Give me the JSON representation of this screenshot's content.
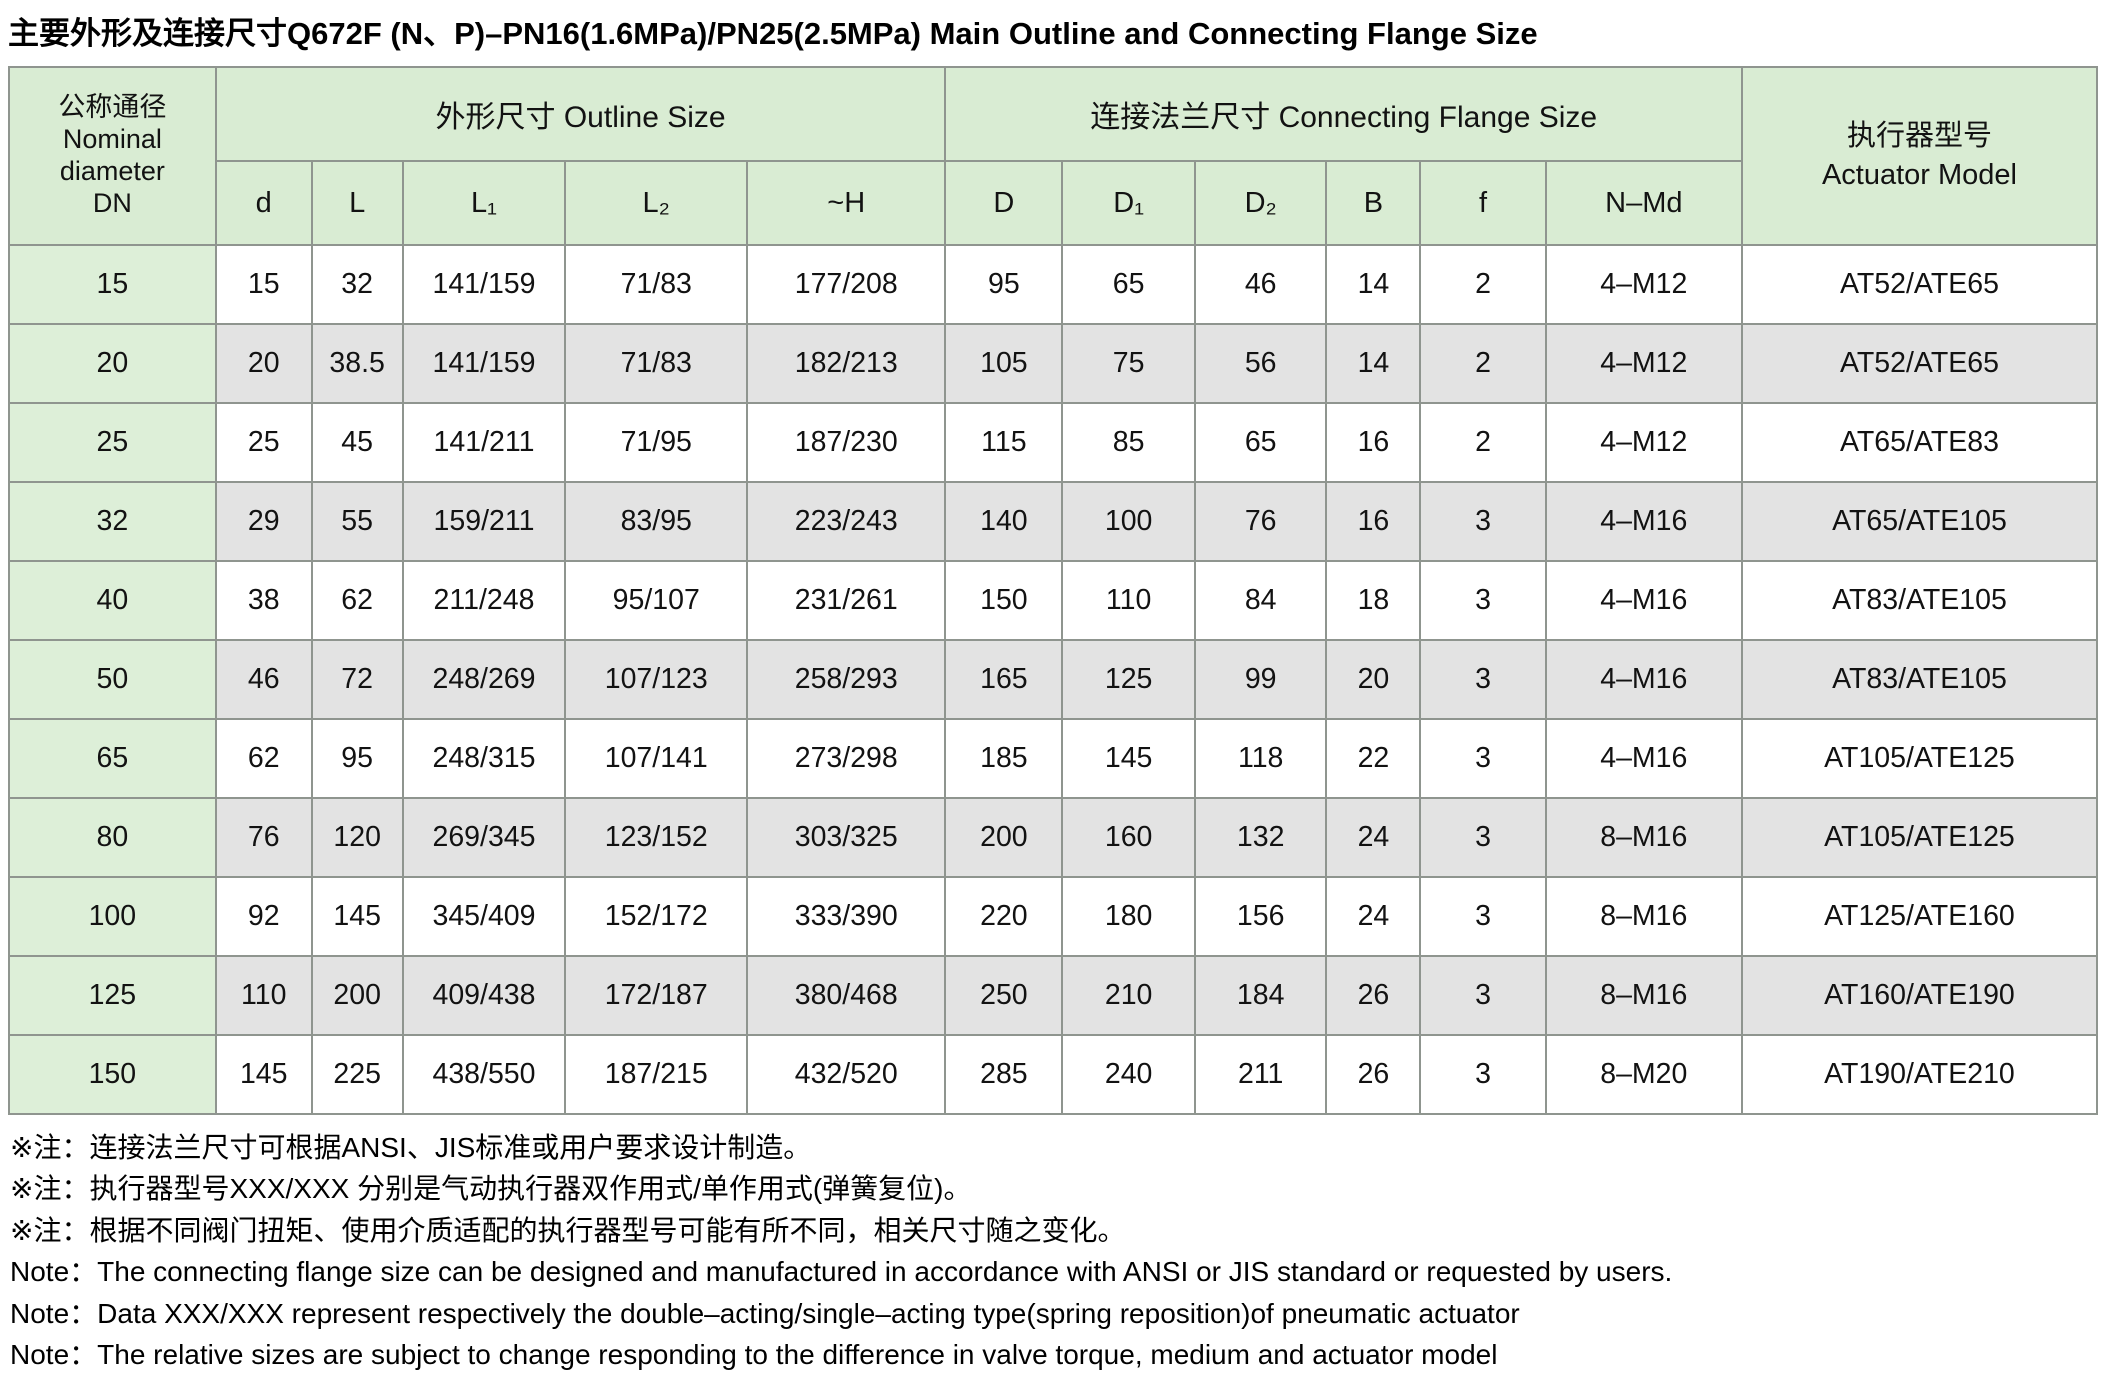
{
  "title": "主要外形及连接尺寸Q672F (N、P)–PN16(1.6MPa)/PN25(2.5MPa) Main Outline and Connecting Flange Size",
  "table": {
    "corner_header": "公称通径\nNominal\ndiameter\nDN",
    "groups": {
      "outline": "外形尺寸 Outline Size",
      "flange": "连接法兰尺寸 Connecting Flange Size",
      "actuator": "执行器型号\nActuator Model"
    },
    "columns": [
      "d",
      "L",
      "L₁",
      "L₂",
      "~H",
      "D",
      "D₁",
      "D₂",
      "B",
      "f",
      "N–Md"
    ],
    "rows": [
      [
        "15",
        "15",
        "32",
        "141/159",
        "71/83",
        "177/208",
        "95",
        "65",
        "46",
        "14",
        "2",
        "4–M12",
        "AT52/ATE65"
      ],
      [
        "20",
        "20",
        "38.5",
        "141/159",
        "71/83",
        "182/213",
        "105",
        "75",
        "56",
        "14",
        "2",
        "4–M12",
        "AT52/ATE65"
      ],
      [
        "25",
        "25",
        "45",
        "141/211",
        "71/95",
        "187/230",
        "115",
        "85",
        "65",
        "16",
        "2",
        "4–M12",
        "AT65/ATE83"
      ],
      [
        "32",
        "29",
        "55",
        "159/211",
        "83/95",
        "223/243",
        "140",
        "100",
        "76",
        "16",
        "3",
        "4–M16",
        "AT65/ATE105"
      ],
      [
        "40",
        "38",
        "62",
        "211/248",
        "95/107",
        "231/261",
        "150",
        "110",
        "84",
        "18",
        "3",
        "4–M16",
        "AT83/ATE105"
      ],
      [
        "50",
        "46",
        "72",
        "248/269",
        "107/123",
        "258/293",
        "165",
        "125",
        "99",
        "20",
        "3",
        "4–M16",
        "AT83/ATE105"
      ],
      [
        "65",
        "62",
        "95",
        "248/315",
        "107/141",
        "273/298",
        "185",
        "145",
        "118",
        "22",
        "3",
        "4–M16",
        "AT105/ATE125"
      ],
      [
        "80",
        "76",
        "120",
        "269/345",
        "123/152",
        "303/325",
        "200",
        "160",
        "132",
        "24",
        "3",
        "8–M16",
        "AT105/ATE125"
      ],
      [
        "100",
        "92",
        "145",
        "345/409",
        "152/172",
        "333/390",
        "220",
        "180",
        "156",
        "24",
        "3",
        "8–M16",
        "AT125/ATE160"
      ],
      [
        "125",
        "110",
        "200",
        "409/438",
        "172/187",
        "380/468",
        "250",
        "210",
        "184",
        "26",
        "3",
        "8–M16",
        "AT160/ATE190"
      ],
      [
        "150",
        "145",
        "225",
        "438/550",
        "187/215",
        "432/520",
        "285",
        "240",
        "211",
        "26",
        "3",
        "8–M20",
        "AT190/ATE210"
      ]
    ]
  },
  "notes": [
    "※注：连接法兰尺寸可根据ANSI、JIS标准或用户要求设计制造。",
    "※注：执行器型号XXX/XXX 分别是气动执行器双作用式/单作用式(弹簧复位)。",
    "※注：根据不同阀门扭矩、使用介质适配的执行器型号可能有所不同，相关尺寸随之变化。",
    "Note：The connecting flange size can be designed and manufactured in accordance with ANSI or JIS standard or requested by users.",
    "Note：Data XXX/XXX represent respectively the double–acting/single–acting type(spring reposition)of pneumatic actuator",
    "Note：The relative sizes are subject to change responding to the difference in valve torque, medium and actuator model"
  ],
  "colors": {
    "header_green": "#d9ecd3",
    "dn_column_green": "#ddefd8",
    "stripe_gray": "#e3e3e3",
    "border_gray": "#8f958f"
  }
}
